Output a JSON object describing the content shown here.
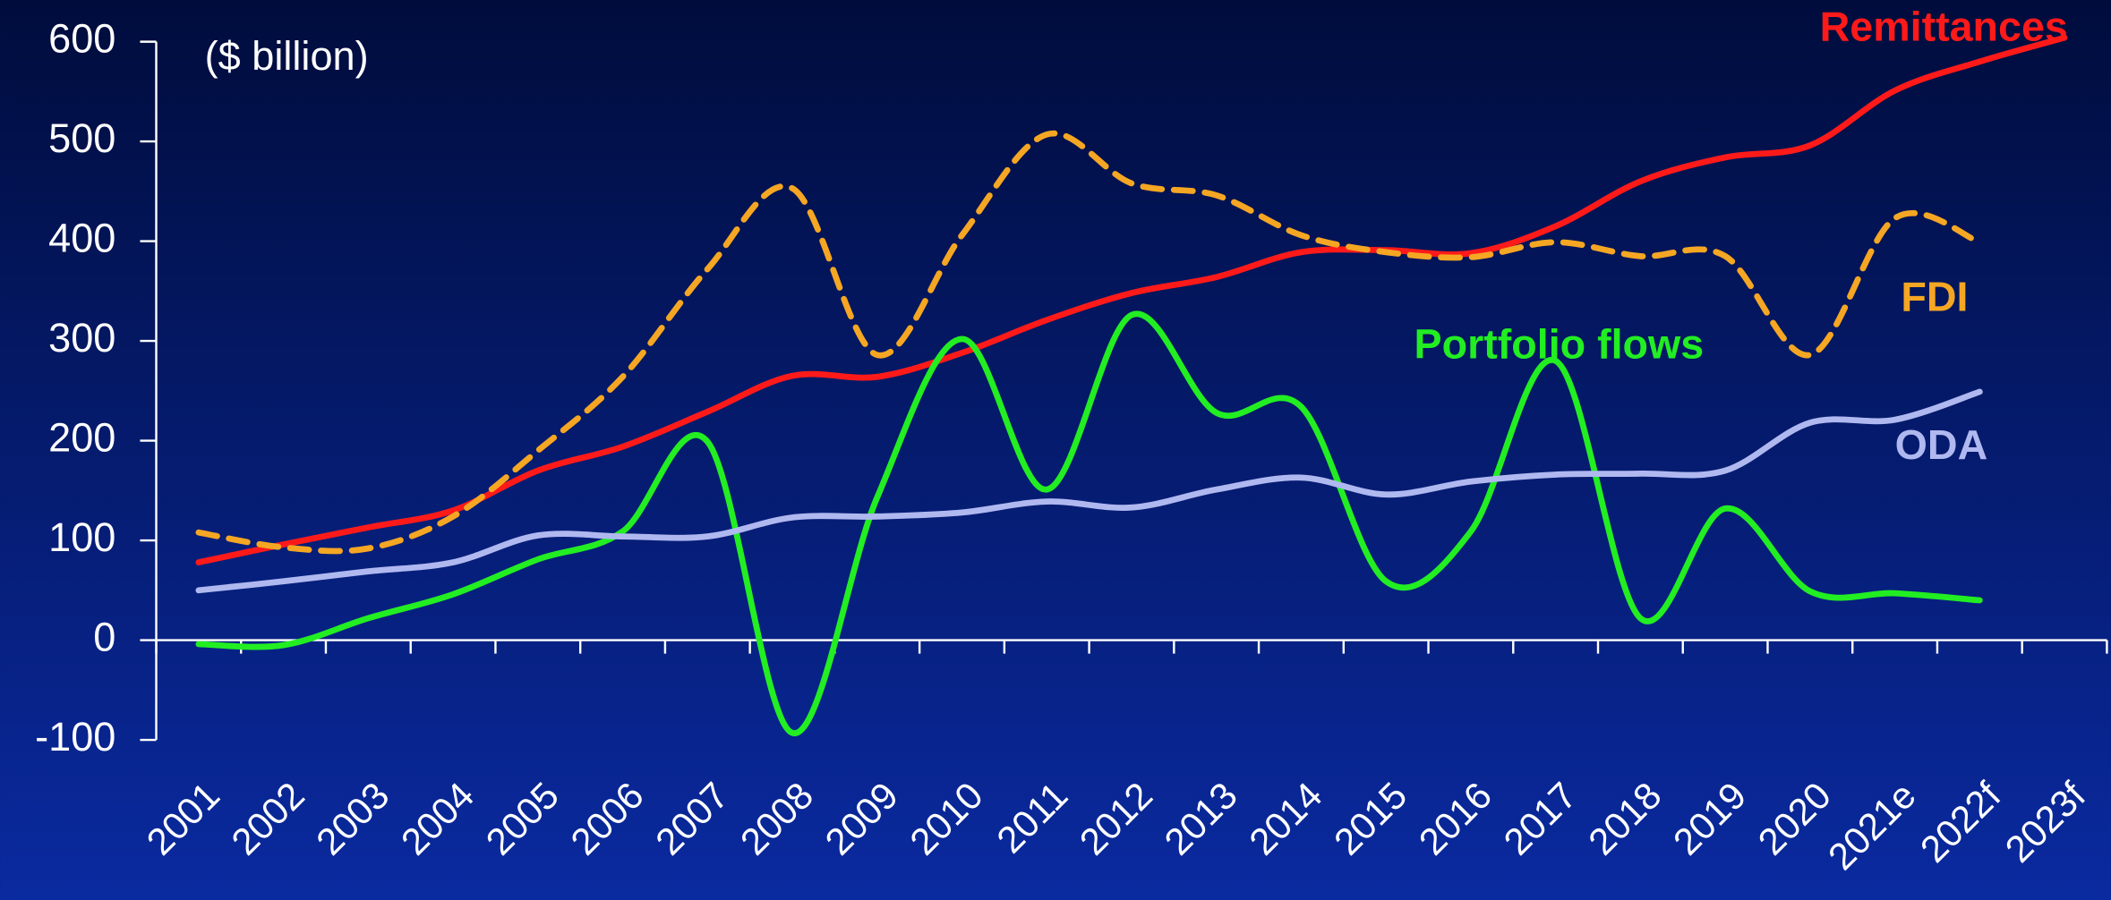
{
  "chart_data": {
    "type": "line",
    "y_label": "($ billion)",
    "categories": [
      "2001",
      "2002",
      "2003",
      "2004",
      "2005",
      "2006",
      "2007",
      "2008",
      "2009",
      "2010",
      "2011",
      "2012",
      "2013",
      "2014",
      "2015",
      "2016",
      "2017",
      "2018",
      "2019",
      "2020",
      "2021e",
      "2022f",
      "2023f"
    ],
    "ylim": [
      -100,
      600
    ],
    "yticks": [
      -100,
      0,
      100,
      200,
      300,
      400,
      500,
      600
    ],
    "series": [
      {
        "name": "Remittances",
        "color": "#ff1a1a",
        "dashed": false,
        "values": [
          78,
          96,
          113,
          130,
          170,
          194,
          229,
          265,
          264,
          288,
          321,
          348,
          364,
          389,
          391,
          388,
          415,
          460,
          484,
          496,
          551,
          580,
          604
        ]
      },
      {
        "name": "FDI",
        "color": "#f5a623",
        "dashed": true,
        "values": [
          108,
          93,
          92,
          124,
          190,
          264,
          372,
          453,
          286,
          406,
          507,
          458,
          446,
          406,
          389,
          384,
          399,
          385,
          385,
          286,
          423,
          399,
          null
        ]
      },
      {
        "name": "Portfolio flows",
        "color": "#22ee22",
        "dashed": false,
        "values": [
          -4,
          -5,
          22,
          46,
          81,
          109,
          199,
          -93,
          143,
          302,
          151,
          326,
          228,
          234,
          59,
          109,
          280,
          22,
          132,
          49,
          47,
          40,
          null
        ]
      },
      {
        "name": "ODA",
        "color": "#b0b8f0",
        "dashed": false,
        "values": [
          50,
          59,
          69,
          78,
          105,
          104,
          104,
          123,
          124,
          128,
          139,
          133,
          151,
          163,
          146,
          159,
          166,
          167,
          170,
          218,
          221,
          249,
          null
        ]
      }
    ]
  }
}
